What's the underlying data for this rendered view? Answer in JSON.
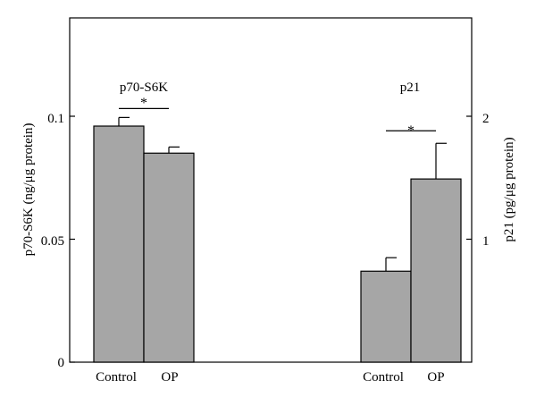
{
  "chart_data": {
    "type": "bar",
    "grid": false,
    "left_axis": {
      "label": "p70-S6K (ng/μg protein)",
      "ylim": [
        0,
        0.14
      ],
      "ticks": [
        0,
        0.05,
        0.1
      ],
      "tick_labels": [
        "0",
        "0.05",
        "0.1"
      ]
    },
    "right_axis": {
      "label": "p21 (pg/μg protein)",
      "ylim": [
        0,
        2.8
      ],
      "ticks": [
        1,
        2
      ],
      "tick_labels": [
        "1",
        "2"
      ]
    },
    "groups": [
      {
        "title": "p70-S6K",
        "axis": "left",
        "categories": [
          "Control",
          "OP"
        ],
        "values": [
          0.096,
          0.085
        ],
        "errors": [
          0.0035,
          0.0025
        ],
        "significance": {
          "label": "*",
          "compare": [
            0,
            1
          ]
        }
      },
      {
        "title": "p21",
        "axis": "right",
        "categories": [
          "Control",
          "OP"
        ],
        "values": [
          0.74,
          1.49
        ],
        "errors": [
          0.11,
          0.29
        ],
        "significance": {
          "label": "*",
          "compare": [
            0,
            1
          ]
        }
      }
    ],
    "colors": {
      "bar_fill": "#a6a6a6",
      "bar_stroke": "#000000",
      "axis": "#000000"
    }
  }
}
